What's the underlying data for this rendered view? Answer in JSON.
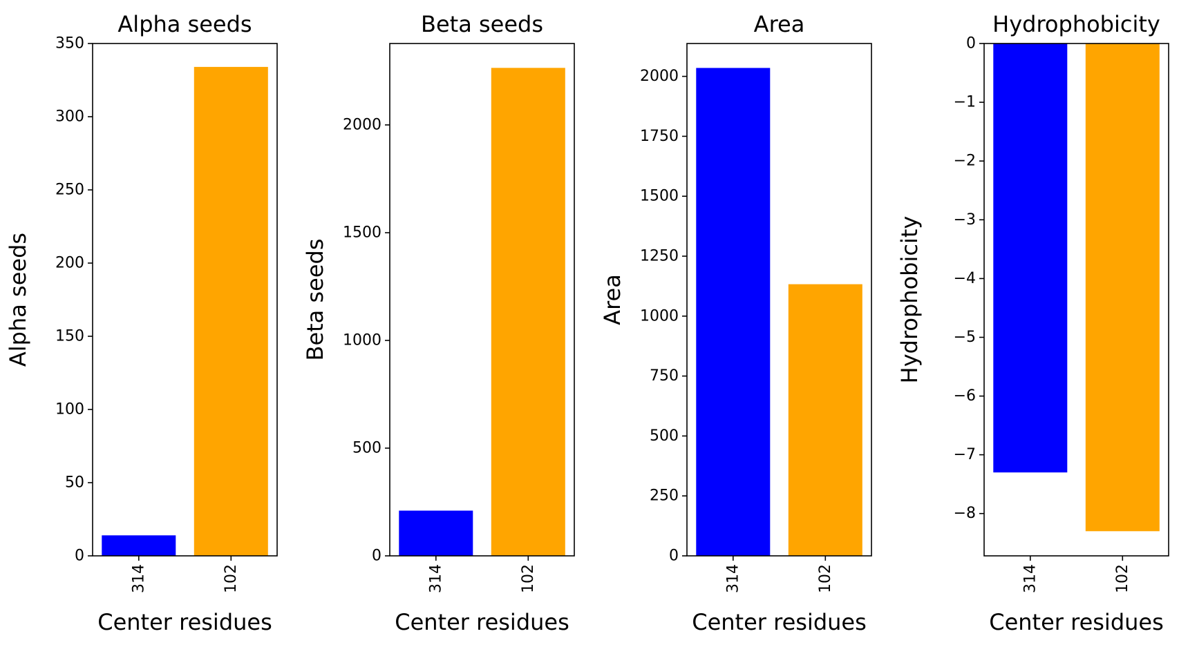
{
  "chart_data": [
    {
      "type": "bar",
      "title": "Alpha seeds",
      "xlabel": "Center residues",
      "ylabel": "Alpha seeds",
      "categories": [
        "314",
        "102"
      ],
      "values": [
        14,
        334
      ],
      "colors": [
        "#0000ff",
        "#ffa500"
      ],
      "ylim": [
        0,
        350
      ],
      "yticks": [
        0,
        50,
        100,
        150,
        200,
        250,
        300,
        350
      ],
      "ytick_labels": [
        "0",
        "50",
        "100",
        "150",
        "200",
        "250",
        "300",
        "350"
      ],
      "xtick_rotation": "vertical",
      "grid": false
    },
    {
      "type": "bar",
      "title": "Beta seeds",
      "xlabel": "Center residues",
      "ylabel": "Beta seeds",
      "categories": [
        "314",
        "102"
      ],
      "values": [
        210,
        2265
      ],
      "colors": [
        "#0000ff",
        "#ffa500"
      ],
      "ylim": [
        0,
        2378
      ],
      "yticks": [
        0,
        500,
        1000,
        1500,
        2000
      ],
      "ytick_labels": [
        "0",
        "500",
        "1000",
        "1500",
        "2000"
      ],
      "xtick_rotation": "vertical",
      "grid": false
    },
    {
      "type": "bar",
      "title": "Area",
      "xlabel": "Center residues",
      "ylabel": "Area",
      "categories": [
        "314",
        "102"
      ],
      "values": [
        2035,
        1133
      ],
      "colors": [
        "#0000ff",
        "#ffa500"
      ],
      "ylim": [
        0,
        2137
      ],
      "yticks": [
        0,
        250,
        500,
        750,
        1000,
        1250,
        1500,
        1750,
        2000
      ],
      "ytick_labels": [
        "0",
        "250",
        "500",
        "750",
        "1000",
        "1250",
        "1500",
        "1750",
        "2000"
      ],
      "xtick_rotation": "vertical",
      "grid": false
    },
    {
      "type": "bar",
      "title": "Hydrophobicity",
      "xlabel": "Center residues",
      "ylabel": "Hydrophobicity",
      "categories": [
        "314",
        "102"
      ],
      "values": [
        -7.3,
        -8.3
      ],
      "colors": [
        "#0000ff",
        "#ffa500"
      ],
      "ylim": [
        -8.72,
        0
      ],
      "yticks": [
        0,
        -1,
        -2,
        -3,
        -4,
        -5,
        -6,
        -7,
        -8
      ],
      "ytick_labels": [
        "0",
        "−1",
        "−2",
        "−3",
        "−4",
        "−5",
        "−6",
        "−7",
        "−8"
      ],
      "xtick_rotation": "vertical",
      "grid": false
    }
  ]
}
